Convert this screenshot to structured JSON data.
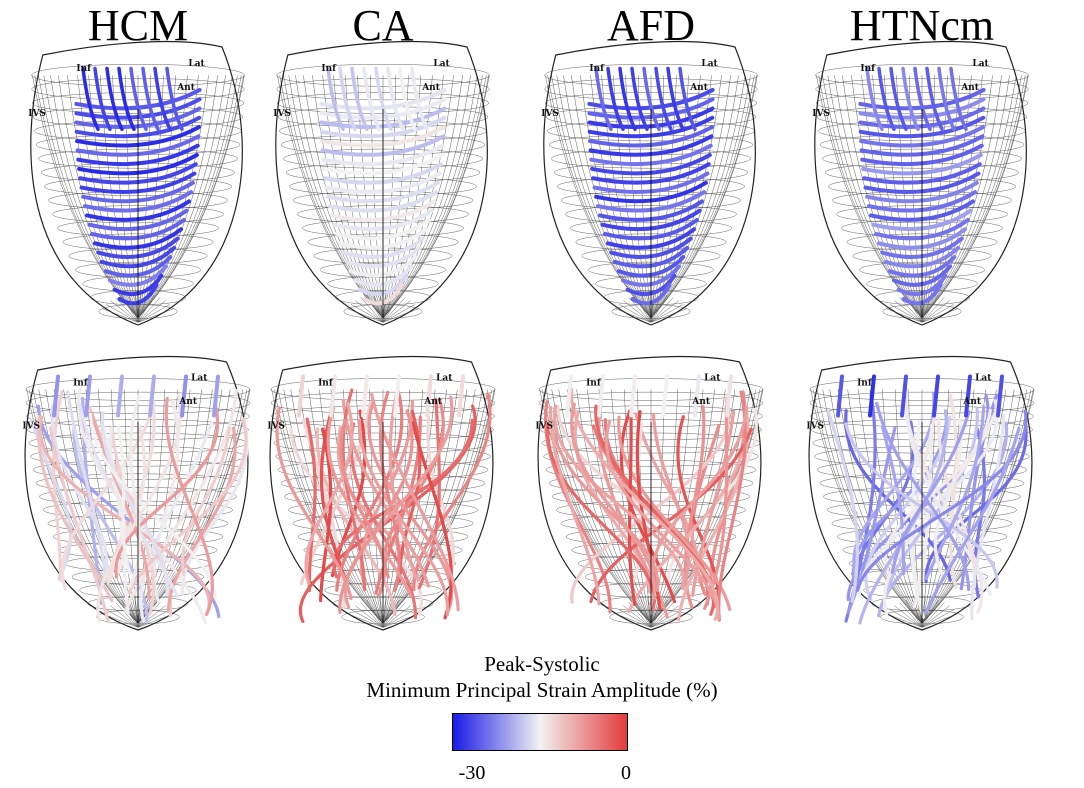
{
  "columns": [
    "HCM",
    "CA",
    "AFD",
    "HTNcm"
  ],
  "segment_labels": {
    "inf": "Inf",
    "lat": "Lat",
    "ant": "Ant",
    "ivs": "IVS"
  },
  "legend": {
    "title_line1": "Peak-Systolic",
    "title_line2": "Minimum Principal Strain Amplitude (%)",
    "min_label": "-30",
    "max_label": "0",
    "colors": {
      "low": "#1a1ae6",
      "mid": "#f2f2f2",
      "high": "#e33b3b"
    }
  },
  "panels": [
    {
      "column": "HCM",
      "row": "top",
      "strain_level": 0.1
    },
    {
      "column": "CA",
      "row": "top",
      "strain_level": 0.45
    },
    {
      "column": "AFD",
      "row": "top",
      "strain_level": 0.12
    },
    {
      "column": "HTNcm",
      "row": "top",
      "strain_level": 0.2
    },
    {
      "column": "HCM",
      "row": "bottom",
      "strain_level": 0.6
    },
    {
      "column": "CA",
      "row": "bottom",
      "strain_level": 0.85
    },
    {
      "column": "AFD",
      "row": "bottom",
      "strain_level": 0.82
    },
    {
      "column": "HTNcm",
      "row": "bottom",
      "strain_level": 0.4
    }
  ]
}
